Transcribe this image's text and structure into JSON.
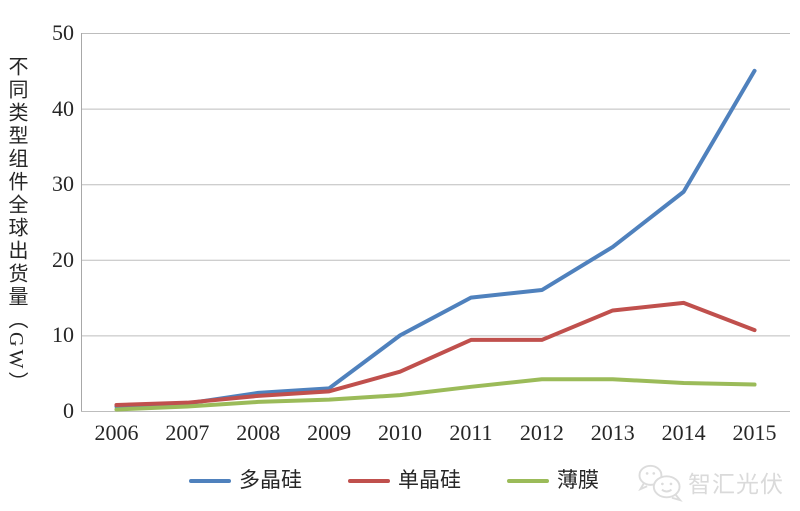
{
  "chart_data": {
    "type": "line",
    "title": "",
    "categories": [
      "2006",
      "2007",
      "2008",
      "2009",
      "2010",
      "2011",
      "2012",
      "2013",
      "2014",
      "2015"
    ],
    "series": [
      {
        "name": "多晶硅",
        "color": "#4F81BD",
        "values": [
          0.6,
          1.0,
          2.4,
          3.0,
          10.0,
          15.0,
          16.0,
          21.7,
          29.0,
          45.0
        ]
      },
      {
        "name": "单晶硅",
        "color": "#C0504D",
        "values": [
          0.8,
          1.1,
          2.0,
          2.6,
          5.2,
          9.4,
          9.4,
          13.3,
          14.3,
          10.7
        ]
      },
      {
        "name": "薄膜",
        "color": "#9BBB59",
        "values": [
          0.2,
          0.6,
          1.2,
          1.5,
          2.1,
          3.2,
          4.2,
          4.2,
          3.7,
          3.5
        ]
      }
    ],
    "xlabel": "",
    "ylabel": "不同类型组件全球出货量（GW）",
    "ylim": [
      0,
      50
    ],
    "yticks": [
      0,
      10,
      20,
      30,
      40,
      50
    ],
    "grid": "horizontal",
    "legend_position": "bottom"
  },
  "watermark": {
    "text": "智汇光伏",
    "icon": "wechat-icon",
    "color": "#dadada"
  },
  "colors": {
    "background": "#ffffff",
    "gridline": "#bdbdbd",
    "axis_line": "#a8a8a8",
    "axis_text": "#262626"
  }
}
